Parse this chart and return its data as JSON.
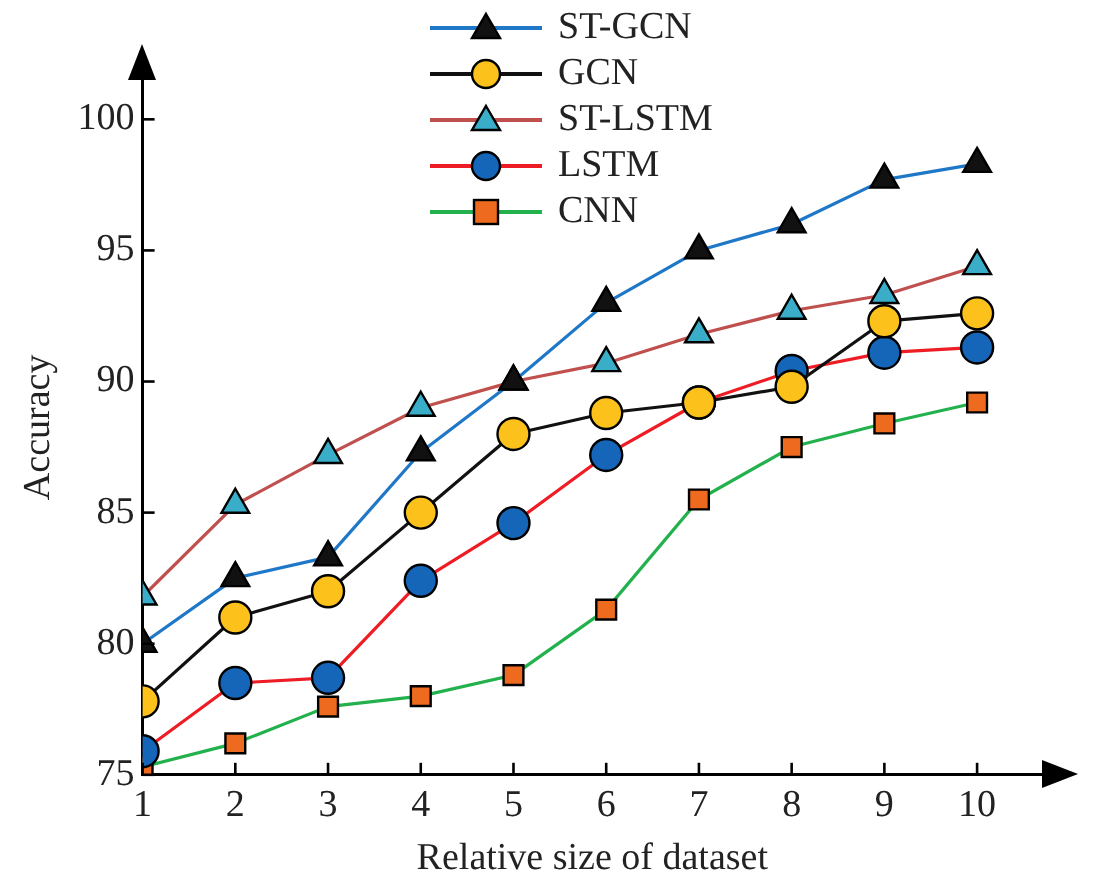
{
  "chart_data": {
    "type": "line",
    "xlabel": "Relative size of dataset",
    "ylabel": "Accuracy",
    "x": [
      1,
      2,
      3,
      4,
      5,
      6,
      7,
      8,
      9,
      10
    ],
    "xlim": [
      1,
      10.7
    ],
    "xticks": [
      1,
      2,
      3,
      4,
      5,
      6,
      7,
      8,
      9,
      10
    ],
    "ylim": [
      75,
      101.5
    ],
    "yticks": [
      75,
      80,
      85,
      90,
      95,
      100
    ],
    "grid": false,
    "legend": "top",
    "series": [
      {
        "name": "ST-GCN",
        "color": "#1f77c8",
        "marker": "triangle",
        "colors": [
          "#111111",
          "#111111",
          "#111111",
          "#111111",
          "#111111",
          "#111111",
          "#111111",
          "#111111",
          "#111111",
          "#111111"
        ],
        "values": [
          80.0,
          82.5,
          83.3,
          87.3,
          90.0,
          93.0,
          95.0,
          96.0,
          97.7,
          98.3
        ]
      },
      {
        "name": "GCN",
        "color": "#111111",
        "marker": "circle",
        "colors": [
          "#fcc21b",
          "#fcc21b",
          "#fcc21b",
          "#fcc21b",
          "#fcc21b",
          "#fcc21b",
          "#fcc21b",
          "#fcc21b",
          "#fcc21b",
          "#fcc21b"
        ],
        "values": [
          77.8,
          81.0,
          82.0,
          85.0,
          88.0,
          88.8,
          89.2,
          89.8,
          92.3,
          92.6
        ]
      },
      {
        "name": "ST-LSTM",
        "color": "#c0504d",
        "marker": "triangle",
        "colors": [
          "#3aaec8",
          "#3aaec8",
          "#3aaec8",
          "#3aaec8",
          "#3aaec8",
          "#3aaec8",
          "#3aaec8",
          "#3aaec8",
          "#3aaec8",
          "#3aaec8"
        ],
        "values": [
          81.8,
          85.3,
          87.2,
          89.0,
          90.0,
          90.7,
          91.8,
          92.7,
          93.3,
          94.4
        ]
      },
      {
        "name": "LSTM",
        "color": "#ee1c24",
        "marker": "circle",
        "colors": [
          "#1565b8",
          "#1565b8",
          "#1565b8",
          "#1565b8",
          "#1565b8",
          "#1565b8",
          "#1565b8",
          "#1565b8",
          "#1565b8",
          "#1565b8"
        ],
        "values": [
          75.9,
          78.5,
          78.7,
          82.4,
          84.6,
          87.2,
          89.2,
          90.4,
          91.1,
          91.3
        ]
      },
      {
        "name": "CNN",
        "color": "#22b14c",
        "marker": "square",
        "colors": [
          "#ee6a1f",
          "#ee6a1f",
          "#ee6a1f",
          "#ee6a1f",
          "#ee6a1f",
          "#ee6a1f",
          "#ee6a1f",
          "#ee6a1f",
          "#ee6a1f",
          "#ee6a1f"
        ],
        "values": [
          75.3,
          76.2,
          77.6,
          78.0,
          78.8,
          81.3,
          85.5,
          87.5,
          88.4,
          89.2
        ]
      }
    ]
  }
}
